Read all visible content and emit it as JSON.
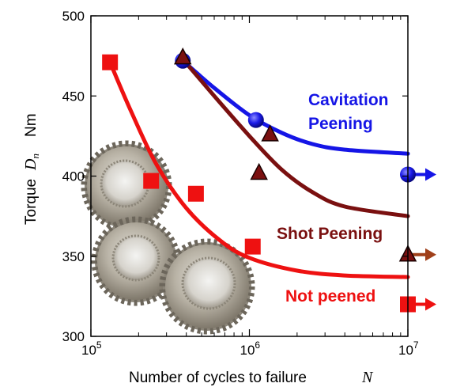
{
  "chart_data": {
    "type": "scatter",
    "xscale": "log",
    "xlim": [
      100000,
      10000000
    ],
    "ylim": [
      300,
      500
    ],
    "grid": false,
    "xlabel": "Number of cycles to failure",
    "xlabel_symbol": "N",
    "ylabel": "Torque",
    "ylabel_symbol_base": "D",
    "ylabel_symbol_sub": "n",
    "ylabel_unit": "Nm",
    "x_ticks": [
      {
        "value": 100000,
        "base": "10",
        "exp": "5"
      },
      {
        "value": 1000000,
        "base": "10",
        "exp": "6"
      },
      {
        "value": 10000000,
        "base": "10",
        "exp": "7"
      }
    ],
    "y_ticks": [
      {
        "value": 300,
        "label": "300"
      },
      {
        "value": 350,
        "label": "350"
      },
      {
        "value": 400,
        "label": "400"
      },
      {
        "value": 450,
        "label": "450"
      },
      {
        "value": 500,
        "label": "500"
      }
    ],
    "series": [
      {
        "name": "Cavitation Peening",
        "label_lines": [
          "Cavitation",
          "Peening"
        ],
        "color": "#1515e6",
        "marker": "circle",
        "points": [
          {
            "x": 380000,
            "y": 472
          },
          {
            "x": 1100000,
            "y": 435
          },
          {
            "x": 10000000,
            "y": 401,
            "runout": true
          }
        ],
        "curve": [
          [
            380000,
            472
          ],
          [
            600000,
            455
          ],
          [
            1000000,
            438
          ],
          [
            1600000,
            427
          ],
          [
            2500000,
            420
          ],
          [
            4000000,
            416.5
          ],
          [
            10000000,
            414
          ]
        ]
      },
      {
        "name": "Shot Peening",
        "label_lines": [
          "Shot Peening"
        ],
        "color": "#7a1010",
        "arrow_color": "#a0401a",
        "marker": "triangle",
        "points": [
          {
            "x": 380000,
            "y": 474
          },
          {
            "x": 1150000,
            "y": 402
          },
          {
            "x": 1350000,
            "y": 426
          },
          {
            "x": 10000000,
            "y": 351,
            "runout": true
          }
        ],
        "curve": [
          [
            380000,
            473
          ],
          [
            600000,
            450
          ],
          [
            1000000,
            425
          ],
          [
            1600000,
            404
          ],
          [
            2500000,
            390
          ],
          [
            4000000,
            381
          ],
          [
            10000000,
            375
          ]
        ]
      },
      {
        "name": "Not peened",
        "label_lines": [
          "Not peened"
        ],
        "color": "#ee1111",
        "marker": "square",
        "points": [
          {
            "x": 132000,
            "y": 471
          },
          {
            "x": 240000,
            "y": 397
          },
          {
            "x": 460000,
            "y": 389
          },
          {
            "x": 1050000,
            "y": 356
          },
          {
            "x": 10000000,
            "y": 320,
            "runout": true
          }
        ],
        "curve": [
          [
            132000,
            471
          ],
          [
            180000,
            440
          ],
          [
            260000,
            407
          ],
          [
            400000,
            380
          ],
          [
            650000,
            360
          ],
          [
            1000000,
            349
          ],
          [
            2000000,
            341
          ],
          [
            4000000,
            338
          ],
          [
            10000000,
            337
          ]
        ]
      }
    ]
  }
}
